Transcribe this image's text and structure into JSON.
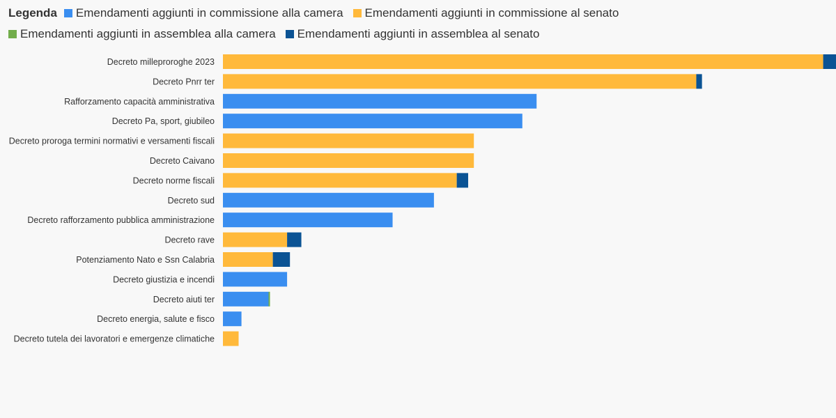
{
  "legend": {
    "title": "Legenda",
    "items": [
      {
        "label": "Emendamenti aggiunti in commissione alla camera",
        "color": "#3a8ef0"
      },
      {
        "label": "Emendamenti aggiunti in commissione al senato",
        "color": "#ffb93b"
      },
      {
        "label": "Emendamenti aggiunti in assemblea alla camera",
        "color": "#72ad4b"
      },
      {
        "label": "Emendamenti aggiunti in assemblea al senato",
        "color": "#0b5394"
      }
    ]
  },
  "chart_data": {
    "type": "bar",
    "orientation": "horizontal",
    "stacked": true,
    "title": "",
    "xlabel": "",
    "ylabel": "",
    "grid": false,
    "legend_position": "top",
    "xlim": [
      0,
      430
    ],
    "categories": [
      "Decreto milleproroghe 2023",
      "Decreto Pnrr ter",
      "Rafforzamento capacità amministrativa",
      "Decreto Pa, sport, giubileo",
      "Decreto proroga termini normativi e versamenti fiscali",
      "Decreto Caivano",
      "Decreto norme fiscali",
      "Decreto sud",
      "Decreto rafforzamento pubblica amministrazione",
      "Decreto rave",
      "Potenziamento Nato e Ssn Calabria",
      "Decreto giustizia e incendi",
      "Decreto aiuti ter",
      "Decreto energia, salute e fisco",
      "Decreto tutela dei lavoratori e emergenze climatiche"
    ],
    "series": [
      {
        "name": "Emendamenti aggiunti in commissione alla camera",
        "color": "#3a8ef0",
        "values": [
          0,
          0,
          220,
          210,
          0,
          0,
          0,
          148,
          119,
          0,
          0,
          45,
          32,
          13,
          0
        ]
      },
      {
        "name": "Emendamenti aggiunti in commissione al senato",
        "color": "#ffb93b",
        "values": [
          421,
          332,
          0,
          0,
          176,
          176,
          164,
          0,
          0,
          45,
          35,
          0,
          0,
          0,
          11
        ]
      },
      {
        "name": "Emendamenti aggiunti in assemblea alla camera",
        "color": "#72ad4b",
        "values": [
          0,
          0,
          0,
          0,
          0,
          0,
          0,
          0,
          0,
          0,
          0,
          0,
          1,
          0,
          0
        ]
      },
      {
        "name": "Emendamenti aggiunti in assemblea al senato",
        "color": "#0b5394",
        "values": [
          10,
          4,
          0,
          0,
          0,
          0,
          8,
          0,
          0,
          10,
          12,
          0,
          0,
          0,
          0
        ]
      }
    ]
  }
}
